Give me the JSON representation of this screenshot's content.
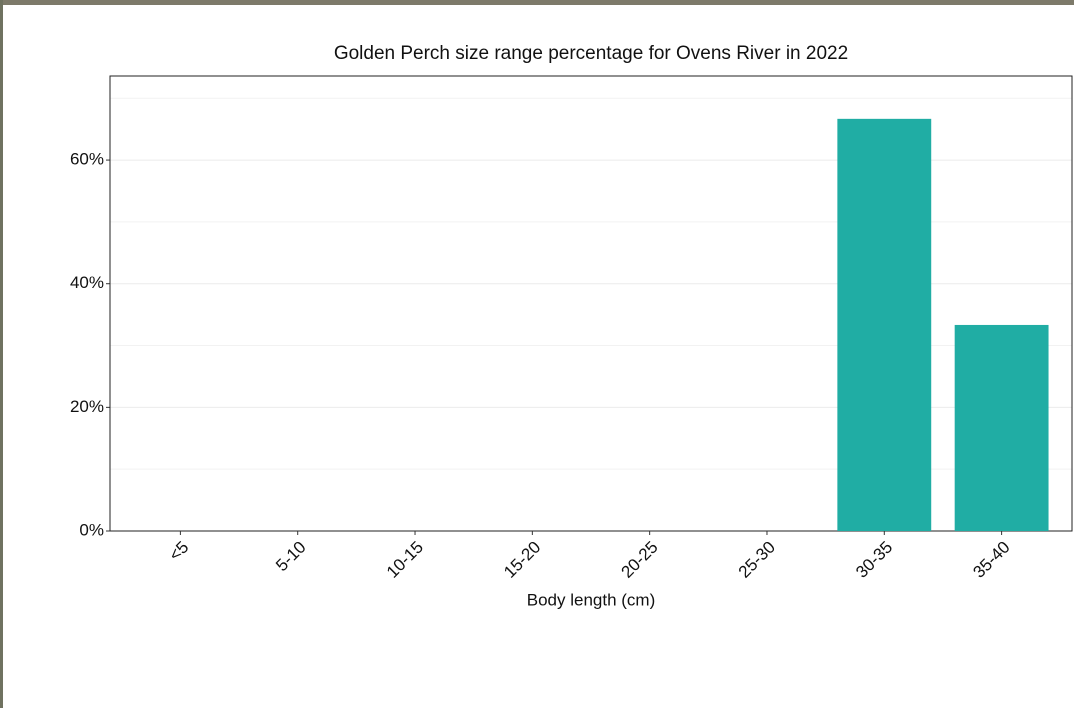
{
  "chart_data": {
    "type": "bar",
    "title": "Golden Perch size range percentage for Ovens River in 2022",
    "x_label": "Body length (cm)",
    "categories": [
      "<5",
      "5-10",
      "10-15",
      "15-20",
      "20-25",
      "25-30",
      "30-35",
      "35-40"
    ],
    "values": [
      0,
      0,
      0,
      0,
      0,
      0,
      66.67,
      33.33
    ],
    "color": "#20ada4",
    "ylim": [
      0,
      73.6
    ],
    "yticks": [
      {
        "value": 0,
        "label": "0%"
      },
      {
        "value": 20,
        "label": "20%"
      },
      {
        "value": 40,
        "label": "40%"
      },
      {
        "value": 60,
        "label": "60%"
      }
    ],
    "minor_yticks": [
      10,
      30,
      50,
      70
    ],
    "grid": true
  }
}
